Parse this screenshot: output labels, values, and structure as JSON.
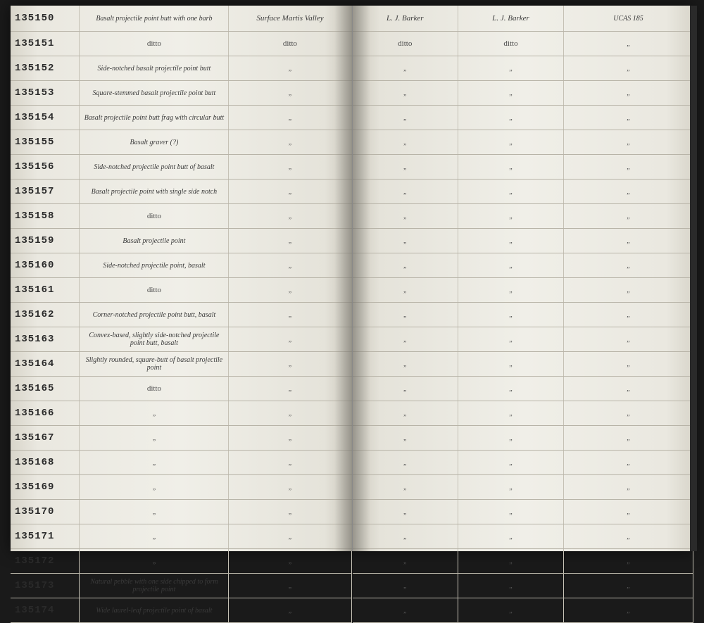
{
  "page_bg": "#e8e6df",
  "ink_color": "#3a3a3a",
  "stamp_color": "#2a2a2a",
  "rule_color": "#b8b4a8",
  "left_page": {
    "columns": [
      "id",
      "description",
      "location"
    ],
    "rows": [
      {
        "id": "135150",
        "desc": "Basalt projectile point butt with one barb",
        "loc": "Surface Martis Valley"
      },
      {
        "id": "135151",
        "desc": "ditto",
        "loc": "ditto"
      },
      {
        "id": "135152",
        "desc": "Side-notched basalt projectile point butt",
        "loc": "\""
      },
      {
        "id": "135153",
        "desc": "Square-stemmed basalt projectile point butt",
        "loc": "\""
      },
      {
        "id": "135154",
        "desc": "Basalt projectile point butt frag with circular butt",
        "loc": "\""
      },
      {
        "id": "135155",
        "desc": "Basalt graver (?)",
        "loc": "\""
      },
      {
        "id": "135156",
        "desc": "Side-notched projectile point butt of basalt",
        "loc": "\""
      },
      {
        "id": "135157",
        "desc": "Basalt projectile point with single side notch",
        "loc": "\""
      },
      {
        "id": "135158",
        "desc": "ditto",
        "loc": "\""
      },
      {
        "id": "135159",
        "desc": "Basalt projectile point",
        "loc": "\""
      },
      {
        "id": "135160",
        "desc": "Side-notched projectile point, basalt",
        "loc": "\""
      },
      {
        "id": "135161",
        "desc": "ditto",
        "loc": "\""
      },
      {
        "id": "135162",
        "desc": "Corner-notched projectile point butt, basalt",
        "loc": "\""
      },
      {
        "id": "135163",
        "desc": "Convex-based, slightly side-notched projectile point butt, basalt",
        "loc": "\""
      },
      {
        "id": "135164",
        "desc": "Slightly rounded, square-butt of basalt projectile point",
        "loc": "\""
      },
      {
        "id": "135165",
        "desc": "ditto",
        "loc": "\""
      },
      {
        "id": "135166",
        "desc": "\"",
        "loc": "\""
      },
      {
        "id": "135167",
        "desc": "\"",
        "loc": "\""
      },
      {
        "id": "135168",
        "desc": "\"",
        "loc": "\""
      },
      {
        "id": "135169",
        "desc": "\"",
        "loc": "\""
      },
      {
        "id": "135170",
        "desc": "\"",
        "loc": "\""
      },
      {
        "id": "135171",
        "desc": "\"",
        "loc": "\""
      },
      {
        "id": "135172",
        "desc": "\"",
        "loc": "\""
      },
      {
        "id": "135173",
        "desc": "Natural pebble with one side chipped to form projectile point",
        "loc": "\""
      },
      {
        "id": "135174",
        "desc": "Wide laurel-leaf projectile point of basalt",
        "loc": "\""
      }
    ]
  },
  "right_page": {
    "columns": [
      "collector",
      "donor",
      "ref"
    ],
    "rows": [
      {
        "c1": "L. J. Barker",
        "c2": "L. J. Barker",
        "c3": "UCAS 185"
      },
      {
        "c1": "ditto",
        "c2": "ditto",
        "c3": "\""
      },
      {
        "c1": "\"",
        "c2": "\"",
        "c3": "\""
      },
      {
        "c1": "\"",
        "c2": "\"",
        "c3": "\""
      },
      {
        "c1": "\"",
        "c2": "\"",
        "c3": "\""
      },
      {
        "c1": "\"",
        "c2": "\"",
        "c3": "\""
      },
      {
        "c1": "\"",
        "c2": "\"",
        "c3": "\""
      },
      {
        "c1": "\"",
        "c2": "\"",
        "c3": "\""
      },
      {
        "c1": "\"",
        "c2": "\"",
        "c3": "\""
      },
      {
        "c1": "\"",
        "c2": "\"",
        "c3": "\""
      },
      {
        "c1": "\"",
        "c2": "\"",
        "c3": "\""
      },
      {
        "c1": "\"",
        "c2": "\"",
        "c3": "\""
      },
      {
        "c1": "\"",
        "c2": "\"",
        "c3": "\""
      },
      {
        "c1": "\"",
        "c2": "\"",
        "c3": "\""
      },
      {
        "c1": "\"",
        "c2": "\"",
        "c3": "\""
      },
      {
        "c1": "\"",
        "c2": "\"",
        "c3": "\""
      },
      {
        "c1": "\"",
        "c2": "\"",
        "c3": "\""
      },
      {
        "c1": "\"",
        "c2": "\"",
        "c3": "\""
      },
      {
        "c1": "\"",
        "c2": "\"",
        "c3": "\""
      },
      {
        "c1": "\"",
        "c2": "\"",
        "c3": "\""
      },
      {
        "c1": "\"",
        "c2": "\"",
        "c3": "\""
      },
      {
        "c1": "\"",
        "c2": "\"",
        "c3": "\""
      },
      {
        "c1": "\"",
        "c2": "\"",
        "c3": "\""
      },
      {
        "c1": "\"",
        "c2": "\"",
        "c3": "\""
      },
      {
        "c1": "\"",
        "c2": "\"",
        "c3": "\""
      }
    ]
  }
}
